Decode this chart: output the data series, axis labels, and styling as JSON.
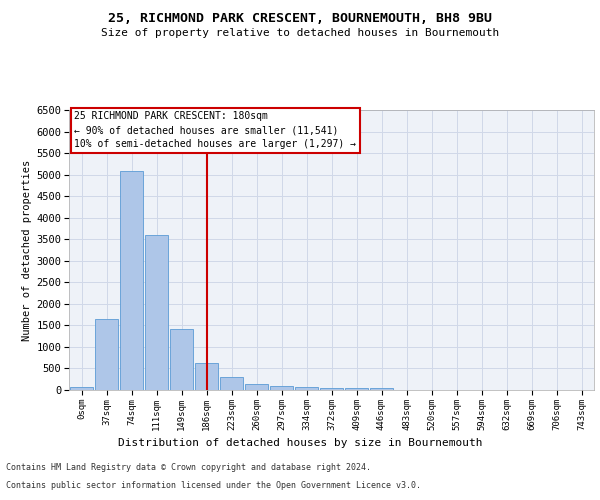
{
  "title": "25, RICHMOND PARK CRESCENT, BOURNEMOUTH, BH8 9BU",
  "subtitle": "Size of property relative to detached houses in Bournemouth",
  "xlabel": "Distribution of detached houses by size in Bournemouth",
  "ylabel": "Number of detached properties",
  "categories": [
    "0sqm",
    "37sqm",
    "74sqm",
    "111sqm",
    "149sqm",
    "186sqm",
    "223sqm",
    "260sqm",
    "297sqm",
    "334sqm",
    "372sqm",
    "409sqm",
    "446sqm",
    "483sqm",
    "520sqm",
    "557sqm",
    "594sqm",
    "632sqm",
    "669sqm",
    "706sqm",
    "743sqm"
  ],
  "bar_values": [
    75,
    1650,
    5075,
    3600,
    1425,
    625,
    300,
    150,
    100,
    75,
    50,
    50,
    50,
    0,
    0,
    0,
    0,
    0,
    0,
    0,
    0
  ],
  "bar_color": "#aec6e8",
  "bar_edge_color": "#5b9bd5",
  "red_line_index": 5,
  "red_line_color": "#cc0000",
  "ylim": [
    0,
    6500
  ],
  "yticks": [
    0,
    500,
    1000,
    1500,
    2000,
    2500,
    3000,
    3500,
    4000,
    4500,
    5000,
    5500,
    6000,
    6500
  ],
  "grid_color": "#d0d8e8",
  "annotation_title": "25 RICHMOND PARK CRESCENT: 180sqm",
  "annotation_line1": "← 90% of detached houses are smaller (11,541)",
  "annotation_line2": "10% of semi-detached houses are larger (1,297) →",
  "annotation_box_color": "#ffffff",
  "annotation_border_color": "#cc0000",
  "footer1": "Contains HM Land Registry data © Crown copyright and database right 2024.",
  "footer2": "Contains public sector information licensed under the Open Government Licence v3.0.",
  "background_color": "#eef2f8",
  "fig_background": "#ffffff"
}
